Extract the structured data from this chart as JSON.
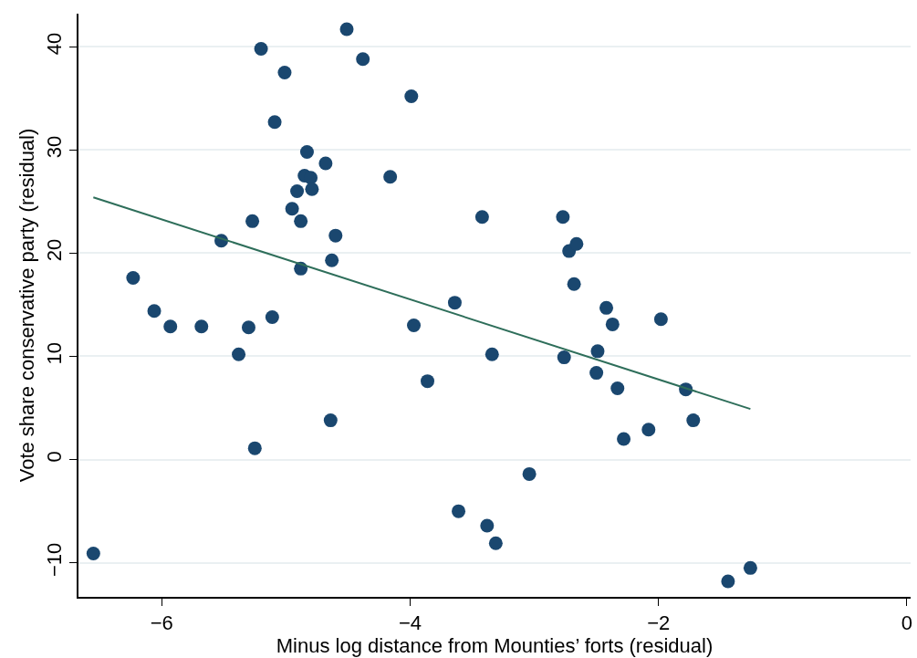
{
  "chart_data": {
    "type": "scatter",
    "xlabel": "Minus log distance from Mounties’ forts (residual)",
    "ylabel": "Vote share conservative party (residual)",
    "xlim": [
      -6.67,
      0.03
    ],
    "xticks": [
      {
        "value": -6,
        "label": "−6"
      },
      {
        "value": -4,
        "label": "−4"
      },
      {
        "value": -2,
        "label": "−2"
      },
      0
    ],
    "ylim": [
      -13.3,
      43.2
    ],
    "yticks": [
      {
        "value": -10,
        "label": "−10"
      },
      0,
      10,
      20,
      30,
      40
    ],
    "grid": "y",
    "legend": false,
    "marker": "circle",
    "series": [
      {
        "color": "#1a476f",
        "x": [
          -6.55,
          -6.23,
          -6.06,
          -5.93,
          -5.68,
          -5.52,
          -5.38,
          -5.3,
          -5.27,
          -5.25,
          -5.2,
          -5.11,
          -5.09,
          -5.01,
          -4.95,
          -4.91,
          -4.88,
          -4.88,
          -4.85,
          -4.83,
          -4.8,
          -4.79,
          -4.68,
          -4.64,
          -4.63,
          -4.6,
          -4.51,
          -4.38,
          -4.16,
          -3.99,
          -3.97,
          -3.86,
          -3.64,
          -3.61,
          -3.42,
          -3.38,
          -3.34,
          -3.31,
          -3.04,
          -2.77,
          -2.76,
          -2.72,
          -2.66,
          -2.68,
          -2.49,
          -2.5,
          -2.42,
          -2.37,
          -2.33,
          -2.28,
          -2.08,
          -1.98,
          -1.78,
          -1.72,
          -1.44,
          -1.26
        ],
        "values": [
          -9.1,
          17.6,
          14.4,
          12.9,
          12.9,
          21.2,
          10.2,
          12.8,
          23.1,
          1.1,
          39.8,
          13.8,
          32.7,
          37.5,
          24.3,
          26.0,
          23.1,
          18.5,
          27.5,
          29.8,
          27.3,
          26.2,
          28.7,
          3.8,
          19.3,
          21.7,
          41.7,
          38.8,
          27.4,
          35.2,
          13.0,
          7.6,
          15.2,
          -5.0,
          23.5,
          -6.4,
          10.2,
          -8.1,
          -1.4,
          23.5,
          9.9,
          20.2,
          20.9,
          17.0,
          10.5,
          8.4,
          14.7,
          13.1,
          6.9,
          2.0,
          2.9,
          13.6,
          6.8,
          3.8,
          -11.8,
          -10.5
        ]
      },
      {
        "type": "line",
        "color": "#2e6e5a",
        "x": [
          -6.55,
          -1.26
        ],
        "values": [
          25.4,
          4.9
        ],
        "marker": "none",
        "line_style": "solid"
      }
    ]
  }
}
